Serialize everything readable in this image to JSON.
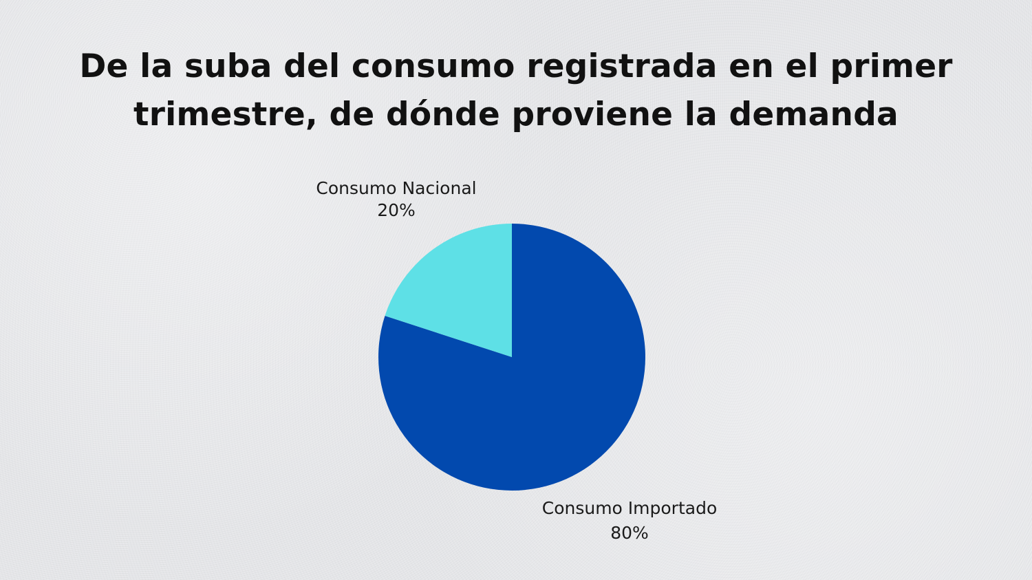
{
  "title_line1": "De la suba del consumo registrada en el primer",
  "title_line2": "trimestre, de dónde proviene la demanda",
  "chart_data": {
    "type": "pie",
    "title": "De la suba del consumo registrada en el primer trimestre, de dónde proviene la demanda",
    "start_angle_deg": 0,
    "direction": "clockwise",
    "slices": [
      {
        "label": "Consumo Importado",
        "value": 80,
        "value_label": "80%",
        "color": "#0249AE"
      },
      {
        "label": "Consumo Nacional",
        "value": 20,
        "value_label": "20%",
        "color": "#5EE0E6"
      }
    ]
  }
}
